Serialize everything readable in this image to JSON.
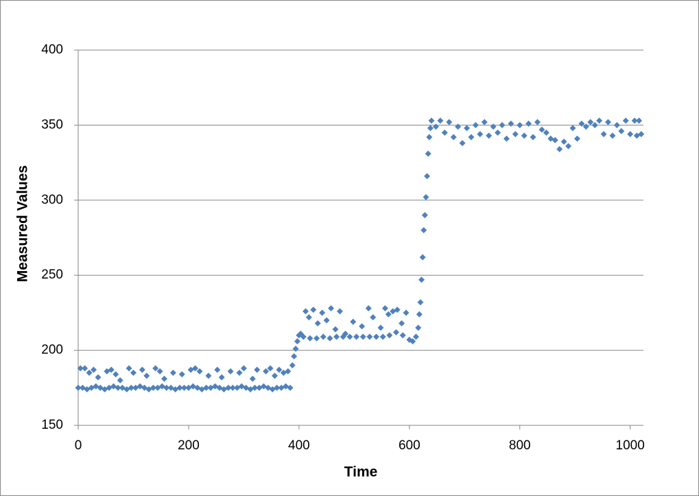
{
  "chart_data": {
    "type": "scatter",
    "xlabel": "Time",
    "ylabel": "Measured  Values",
    "color": "#4f81bd",
    "grid": true,
    "xlim": [
      0,
      1024
    ],
    "xticks": [
      0,
      200,
      400,
      600,
      800,
      1000
    ],
    "ylim": [
      150,
      400
    ],
    "yticks": [
      150,
      200,
      250,
      300,
      350,
      400
    ],
    "x": [
      0,
      8,
      16,
      24,
      32,
      40,
      48,
      56,
      64,
      72,
      80,
      88,
      96,
      104,
      112,
      120,
      128,
      136,
      144,
      152,
      160,
      168,
      176,
      184,
      192,
      200,
      208,
      216,
      224,
      232,
      240,
      248,
      256,
      264,
      272,
      280,
      288,
      296,
      304,
      312,
      320,
      328,
      336,
      344,
      352,
      360,
      368,
      376,
      384,
      4,
      12,
      20,
      28,
      36,
      52,
      60,
      68,
      76,
      92,
      100,
      116,
      124,
      140,
      148,
      156,
      172,
      188,
      204,
      212,
      220,
      236,
      252,
      260,
      276,
      292,
      300,
      316,
      324,
      340,
      348,
      356,
      364,
      372,
      380,
      388,
      391,
      394,
      397,
      400,
      403,
      408,
      420,
      432,
      444,
      456,
      468,
      480,
      492,
      504,
      516,
      528,
      540,
      552,
      564,
      576,
      588,
      600,
      606,
      612,
      412,
      418,
      426,
      434,
      442,
      450,
      458,
      466,
      474,
      484,
      498,
      514,
      526,
      534,
      548,
      556,
      562,
      570,
      578,
      586,
      594,
      616,
      618,
      620,
      622,
      624,
      626,
      628,
      630,
      632,
      634,
      636,
      638,
      640,
      656,
      672,
      688,
      704,
      720,
      736,
      752,
      768,
      784,
      800,
      816,
      832,
      848,
      864,
      880,
      896,
      912,
      928,
      944,
      960,
      976,
      992,
      1008,
      1016,
      648,
      664,
      680,
      696,
      712,
      728,
      744,
      760,
      776,
      792,
      808,
      824,
      840,
      856,
      872,
      888,
      904,
      920,
      936,
      952,
      968,
      984,
      1000,
      1012,
      1020
    ],
    "y": [
      175,
      175,
      174,
      175,
      176,
      175,
      174,
      175,
      176,
      175,
      175,
      174,
      175,
      175,
      176,
      175,
      174,
      175,
      175,
      176,
      175,
      175,
      174,
      175,
      175,
      175,
      176,
      175,
      174,
      175,
      175,
      176,
      175,
      174,
      175,
      175,
      175,
      176,
      175,
      174,
      175,
      175,
      176,
      175,
      174,
      175,
      175,
      176,
      175,
      188,
      188,
      185,
      187,
      182,
      186,
      187,
      184,
      180,
      188,
      185,
      187,
      183,
      188,
      186,
      181,
      185,
      184,
      187,
      188,
      186,
      183,
      187,
      182,
      186,
      185,
      188,
      181,
      187,
      186,
      188,
      183,
      187,
      185,
      186,
      190,
      196,
      201,
      206,
      210,
      211,
      209,
      208,
      208,
      209,
      208,
      209,
      209,
      209,
      209,
      209,
      209,
      209,
      209,
      210,
      212,
      210,
      207,
      206,
      209,
      226,
      222,
      227,
      218,
      225,
      220,
      228,
      214,
      226,
      211,
      219,
      216,
      228,
      222,
      215,
      228,
      224,
      226,
      227,
      218,
      225,
      215,
      224,
      232,
      247,
      262,
      280,
      290,
      302,
      316,
      331,
      342,
      348,
      353,
      353,
      352,
      349,
      348,
      350,
      352,
      349,
      350,
      351,
      350,
      351,
      352,
      345,
      340,
      339,
      348,
      351,
      352,
      353,
      352,
      350,
      353,
      353,
      353,
      349,
      345,
      342,
      338,
      342,
      344,
      343,
      345,
      341,
      344,
      343,
      342,
      347,
      341,
      334,
      336,
      341,
      349,
      350,
      344,
      343,
      346,
      344,
      343,
      344
    ]
  }
}
